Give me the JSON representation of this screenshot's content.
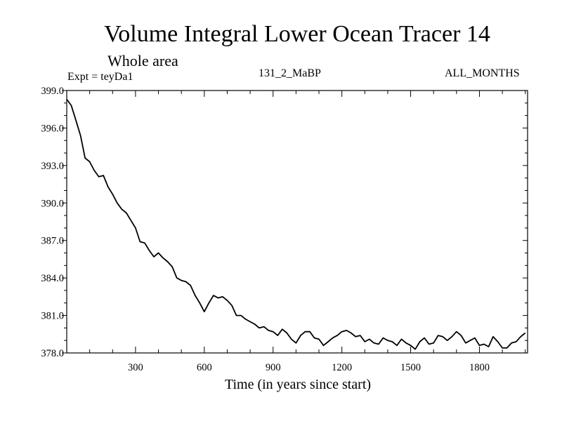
{
  "chart_data": {
    "type": "line",
    "title": "Volume Integral Lower Ocean Tracer 14",
    "subtitle": "Whole area",
    "experiment_label": "Expt = teyDa1",
    "run_label": "131_2_MaBP",
    "months_label": "ALL_MONTHS",
    "xlabel": "Time (in years since start)",
    "ylabel": "",
    "xlim": [
      0,
      2010
    ],
    "ylim": [
      378.0,
      399.0
    ],
    "x_ticks": [
      300,
      600,
      900,
      1200,
      1500,
      1800
    ],
    "x_tick_labels": [
      "300",
      "600",
      "900",
      "1200",
      "1500",
      "1800"
    ],
    "y_ticks": [
      378.0,
      381.0,
      384.0,
      387.0,
      390.0,
      393.0,
      396.0,
      399.0
    ],
    "y_tick_labels": [
      "378.0",
      "381.0",
      "384.0",
      "387.0",
      "390.0",
      "393.0",
      "396.0",
      "399.0"
    ],
    "series": [
      {
        "name": "Lower Ocean Tracer 14",
        "x": [
          0,
          20,
          40,
          60,
          80,
          100,
          120,
          140,
          160,
          180,
          200,
          220,
          240,
          260,
          280,
          300,
          320,
          340,
          360,
          380,
          400,
          420,
          440,
          460,
          480,
          500,
          520,
          540,
          560,
          580,
          600,
          620,
          640,
          660,
          680,
          700,
          720,
          740,
          760,
          780,
          800,
          820,
          840,
          860,
          880,
          900,
          920,
          940,
          960,
          980,
          1000,
          1020,
          1040,
          1060,
          1080,
          1100,
          1120,
          1140,
          1160,
          1180,
          1200,
          1220,
          1240,
          1260,
          1280,
          1300,
          1320,
          1340,
          1360,
          1380,
          1400,
          1420,
          1440,
          1460,
          1480,
          1500,
          1520,
          1540,
          1560,
          1580,
          1600,
          1620,
          1640,
          1660,
          1680,
          1700,
          1720,
          1740,
          1760,
          1780,
          1800,
          1820,
          1840,
          1860,
          1880,
          1900,
          1920,
          1940,
          1960,
          1980,
          2000
        ],
        "y": [
          398.3,
          397.8,
          396.6,
          395.4,
          393.6,
          393.3,
          392.6,
          392.1,
          392.2,
          391.3,
          390.7,
          390.0,
          389.5,
          389.2,
          388.6,
          388.0,
          386.9,
          386.8,
          386.2,
          385.7,
          386.0,
          385.6,
          385.3,
          384.9,
          384.0,
          383.8,
          383.7,
          383.4,
          382.6,
          382.0,
          381.3,
          382.0,
          382.6,
          382.4,
          382.5,
          382.2,
          381.8,
          381.0,
          381.0,
          380.7,
          380.5,
          380.3,
          380.0,
          380.1,
          379.8,
          379.7,
          379.4,
          379.9,
          379.6,
          379.1,
          378.8,
          379.4,
          379.7,
          379.7,
          379.2,
          379.1,
          378.6,
          378.9,
          379.2,
          379.4,
          379.7,
          379.8,
          379.6,
          379.3,
          379.4,
          378.9,
          379.1,
          378.8,
          378.7,
          379.2,
          379.0,
          378.9,
          378.6,
          379.1,
          378.8,
          378.6,
          378.3,
          378.9,
          379.2,
          378.7,
          378.8,
          379.4,
          379.3,
          379.0,
          379.3,
          379.7,
          379.4,
          378.8,
          379.0,
          379.2,
          378.6,
          378.7,
          378.5,
          379.3,
          378.9,
          378.4,
          378.4,
          378.8,
          378.9,
          379.3,
          379.6
        ]
      }
    ]
  }
}
